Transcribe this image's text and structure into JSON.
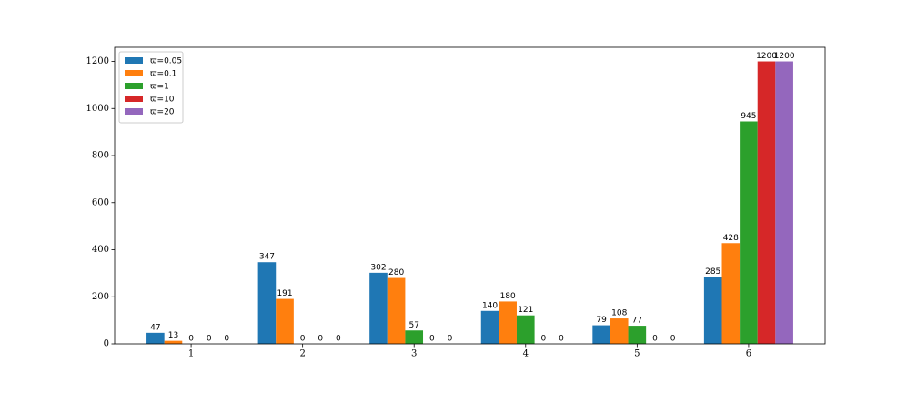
{
  "chart_data": {
    "type": "bar",
    "categories": [
      "1",
      "2",
      "3",
      "4",
      "5",
      "6"
    ],
    "series": [
      {
        "name": "ϖ=0.05",
        "color": "#1f77b4",
        "values": [
          47,
          347,
          302,
          140,
          79,
          285
        ]
      },
      {
        "name": "ϖ=0.1",
        "color": "#ff7f0e",
        "values": [
          13,
          191,
          280,
          180,
          108,
          428
        ]
      },
      {
        "name": "ϖ=1",
        "color": "#2ca02c",
        "values": [
          0,
          0,
          57,
          121,
          77,
          945
        ]
      },
      {
        "name": "ϖ=10",
        "color": "#d62728",
        "values": [
          0,
          0,
          0,
          0,
          0,
          1200
        ]
      },
      {
        "name": "ϖ=20",
        "color": "#9467bd",
        "values": [
          0,
          0,
          0,
          0,
          0,
          1200
        ]
      }
    ],
    "ylim": [
      0,
      1260
    ],
    "yticks": [
      0,
      200,
      400,
      600,
      800,
      1000,
      1200
    ],
    "legend": "upper left",
    "grid": false
  }
}
